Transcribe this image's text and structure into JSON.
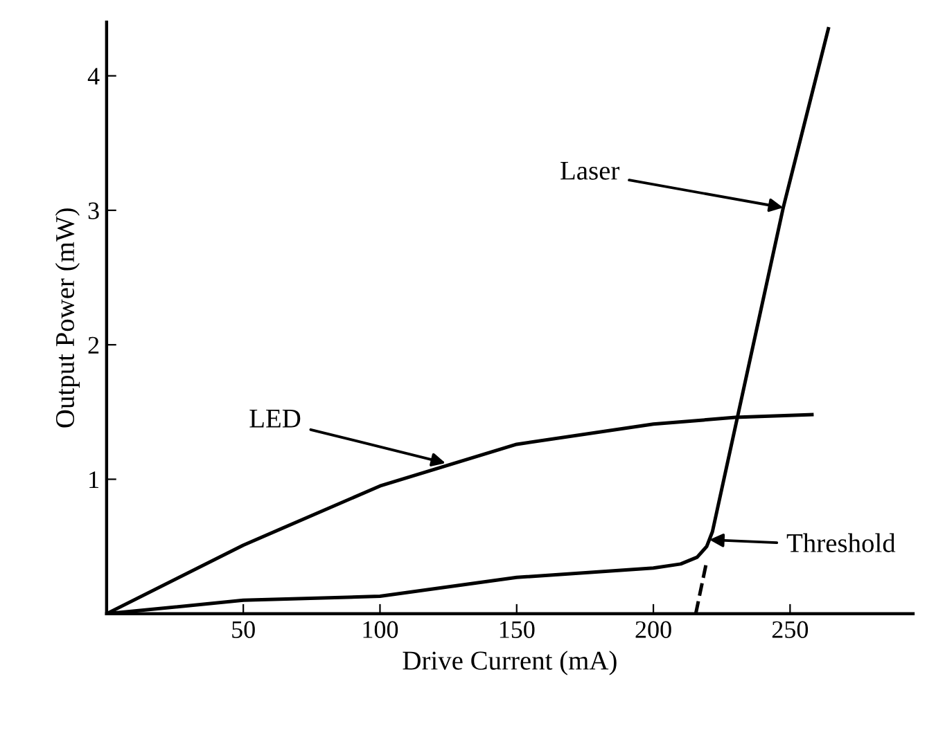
{
  "chart_data": {
    "type": "line",
    "xlabel": "Drive Current (mA)",
    "ylabel": "Output Power (mW)",
    "xlim": [
      0,
      295
    ],
    "ylim": [
      0,
      4.4
    ],
    "xticks": [
      50,
      100,
      150,
      200,
      250
    ],
    "yticks": [
      1,
      2,
      3,
      4
    ],
    "grid": false,
    "marker": "none",
    "series": [
      {
        "color": "#000000",
        "line_style": "solid",
        "x": [
          0,
          50,
          100,
          150,
          200,
          230,
          258
        ],
        "values": [
          0,
          0.51,
          0.95,
          1.26,
          1.41,
          1.46,
          1.48
        ]
      },
      {
        "color": "#000000",
        "line_style": "solid",
        "x": [
          0,
          50,
          100,
          150,
          200,
          210,
          216,
          219.5,
          221.6,
          247.5,
          264
        ],
        "values": [
          0,
          0.1,
          0.13,
          0.27,
          0.34,
          0.37,
          0.42,
          0.5,
          0.61,
          3.02,
          4.35
        ]
      },
      {
        "color": "#000000",
        "line_style": "dashed",
        "x": [
          215.5,
          219.5
        ],
        "values": [
          0,
          0.39
        ]
      }
    ],
    "annotations": [
      {
        "text": "LED",
        "x": 124,
        "y": 1.12
      },
      {
        "text": "Laser",
        "x": 247.5,
        "y": 3.02
      },
      {
        "text": "Threshold",
        "x": 220.5,
        "y": 0.55
      }
    ]
  }
}
